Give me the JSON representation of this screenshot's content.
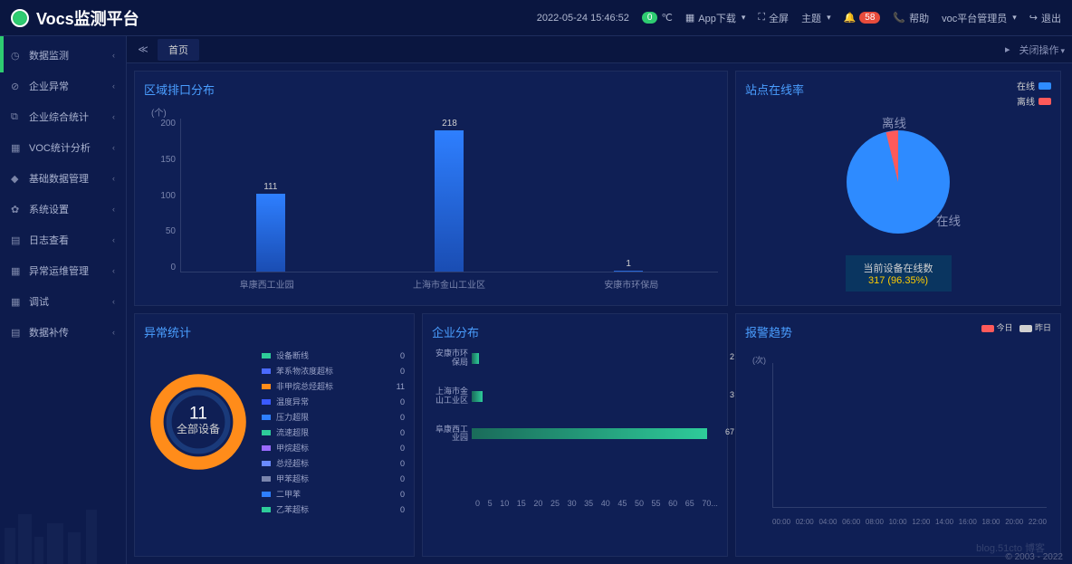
{
  "header": {
    "title": "Vocs监测平台",
    "datetime": "2022-05-24  15:46:52",
    "temp_badge": "0",
    "temp_unit": "℃",
    "app_download": "App下载",
    "fullscreen": "全屏",
    "theme": "主题",
    "alert_count": "58",
    "help": "帮助",
    "user": "voc平台管理员",
    "logout": "退出"
  },
  "sidebar": {
    "items": [
      {
        "icon": "clock",
        "label": "数据监测"
      },
      {
        "icon": "warn",
        "label": "企业异常"
      },
      {
        "icon": "chart",
        "label": "企业综合统计"
      },
      {
        "icon": "grid",
        "label": "VOC统计分析"
      },
      {
        "icon": "db",
        "label": "基础数据管理"
      },
      {
        "icon": "gear",
        "label": "系统设置"
      },
      {
        "icon": "log",
        "label": "日志查看"
      },
      {
        "icon": "ops",
        "label": "异常运维管理"
      },
      {
        "icon": "cal",
        "label": "调试"
      },
      {
        "icon": "up",
        "label": "数据补传"
      }
    ]
  },
  "tabs": {
    "home": "首页",
    "close_op": "关闭操作"
  },
  "region_chart": {
    "title": "区域排口分布",
    "y_unit": "(个)",
    "y_ticks": [
      "200",
      "150",
      "100",
      "50",
      "0"
    ],
    "y_max": 218,
    "bars": [
      {
        "label": "阜康西工业园",
        "value": 111
      },
      {
        "label": "上海市金山工业区",
        "value": 218
      },
      {
        "label": "安康市环保局",
        "value": 1
      }
    ],
    "bar_gradient_top": "#2e7fff",
    "bar_gradient_bottom": "#1a4db3"
  },
  "online_chart": {
    "title": "站点在线率",
    "legend": [
      {
        "label": "在线",
        "color": "#2e8bff"
      },
      {
        "label": "离线",
        "color": "#ff5a5a"
      }
    ],
    "online_pct": 96.35,
    "online_label": "在线",
    "offline_label": "离线",
    "caption_line1": "当前设备在线数",
    "caption_line2": "317 (96.35%)"
  },
  "anomaly": {
    "title": "异常统计",
    "center_num": "11",
    "center_label": "全部设备",
    "ring_color_outer": "#ff8c1a",
    "ring_color_inner": "#1a3a7a",
    "items": [
      {
        "name": "设备断线",
        "value": 0,
        "color": "#2ecc9a"
      },
      {
        "name": "苯系物浓度超标",
        "value": 0,
        "color": "#4a6aff"
      },
      {
        "name": "非甲烷总烃超标",
        "value": 11,
        "color": "#ff8c1a"
      },
      {
        "name": "温度异常",
        "value": 0,
        "color": "#3a5aff"
      },
      {
        "name": "压力超限",
        "value": 0,
        "color": "#2e7fff"
      },
      {
        "name": "流速超限",
        "value": 0,
        "color": "#2ecc9a"
      },
      {
        "name": "甲烷超标",
        "value": 0,
        "color": "#9a6aff"
      },
      {
        "name": "总烃超标",
        "value": 0,
        "color": "#6a8aff"
      },
      {
        "name": "甲苯超标",
        "value": 0,
        "color": "#7a85ad"
      },
      {
        "name": "二甲苯",
        "value": 0,
        "color": "#2e7fff"
      },
      {
        "name": "乙苯超标",
        "value": 0,
        "color": "#2ecc9a"
      }
    ]
  },
  "enterprise": {
    "title": "企业分布",
    "x_max": 70,
    "x_ticks": [
      "0",
      "5",
      "10",
      "15",
      "20",
      "25",
      "30",
      "35",
      "40",
      "45",
      "50",
      "55",
      "60",
      "65",
      "70..."
    ],
    "rows": [
      {
        "label": "安康市环\n保局",
        "value": 2
      },
      {
        "label": "上海市金\n山工业区",
        "value": 3
      },
      {
        "label": "阜康西工\n业园",
        "value": 67
      }
    ]
  },
  "trend": {
    "title": "报警趋势",
    "y_unit": "(次)",
    "legend": [
      {
        "label": "今日",
        "color": "#ff5a5a"
      },
      {
        "label": "昨日",
        "color": "#d0d0d0"
      }
    ],
    "x_ticks": [
      "00:00",
      "02:00",
      "04:00",
      "06:00",
      "08:00",
      "10:00",
      "12:00",
      "14:00",
      "16:00",
      "18:00",
      "20:00",
      "22:00"
    ]
  },
  "footer": "© 2003 - 2022",
  "watermark": "blog.51cto 博客"
}
